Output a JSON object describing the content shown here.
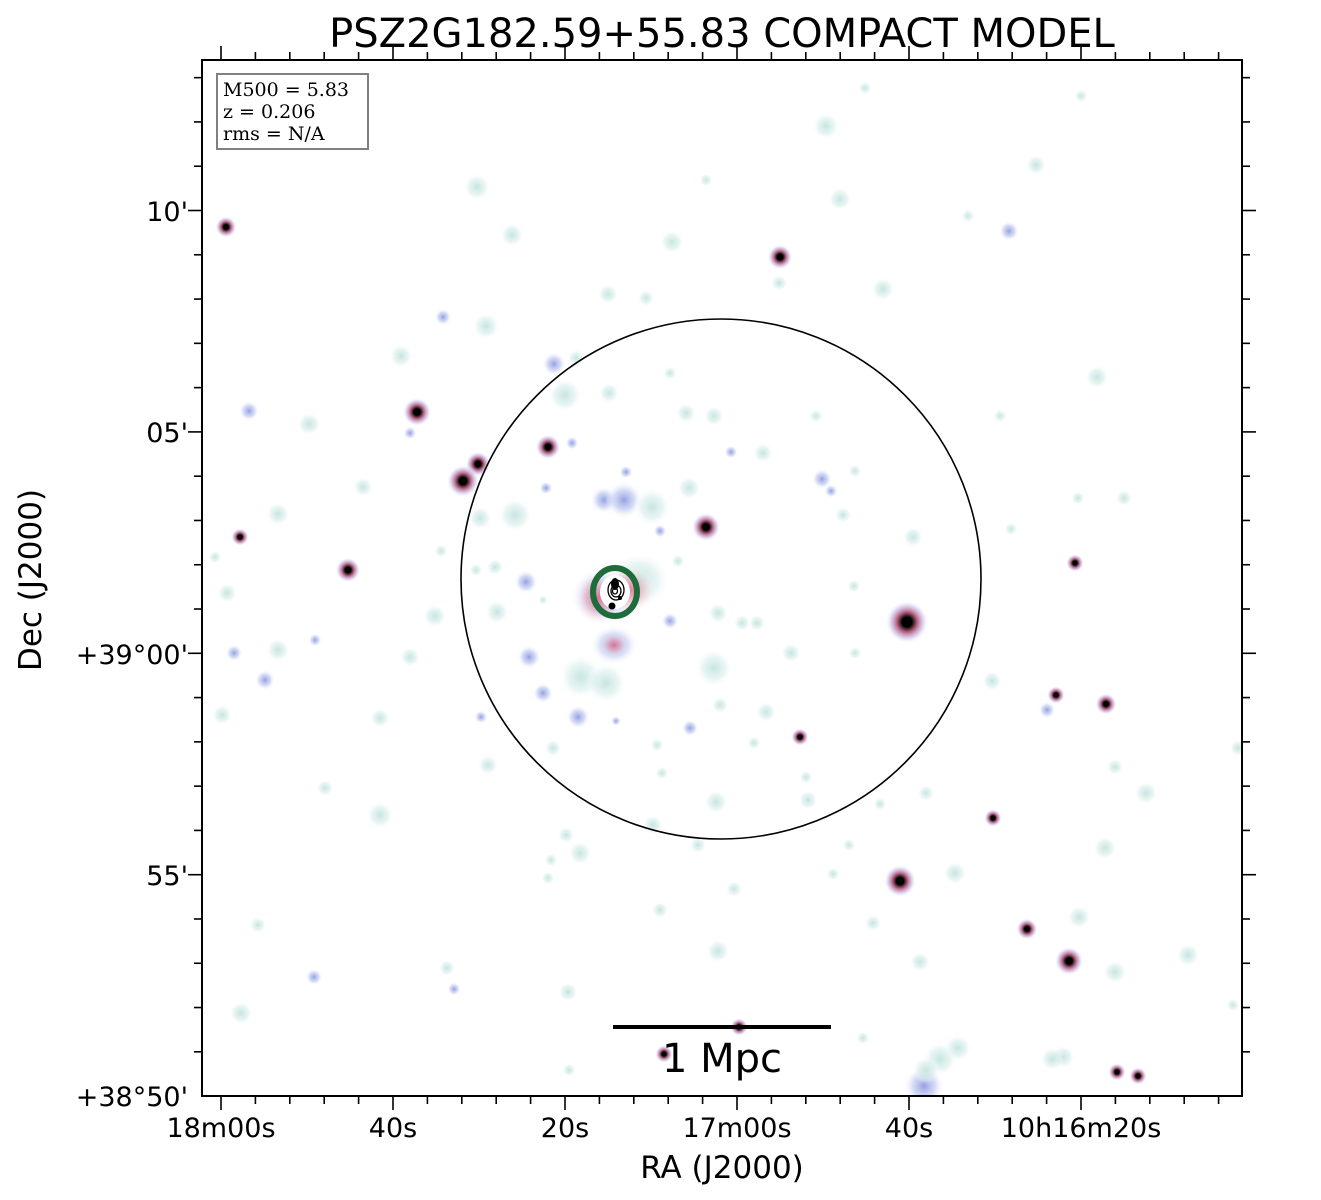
{
  "chart_data": {
    "type": "image",
    "title": "PSZ2G182.59+55.83 COMPACT MODEL",
    "xlabel": "RA (J2000)",
    "ylabel": "Dec (J2000)",
    "x_ticks": [
      "18m00s",
      "40s",
      "20s",
      "17m00s",
      "40s",
      "10h16m20s"
    ],
    "y_ticks": [
      "10'",
      "05'",
      "+39°00'",
      "55'",
      "+38°50'"
    ],
    "info_box": {
      "m500": "M500 = 5.83",
      "z": "z = 0.206",
      "rms": "rms = N/A"
    },
    "scale_bar_label": "1 Mpc",
    "colors": {
      "faint_halo": "#cfe8e4",
      "blue_halo": "#b9c4ee",
      "pink_halo": "#e79aac",
      "green_ring": "#1f6b3a",
      "core": "#000000"
    }
  }
}
